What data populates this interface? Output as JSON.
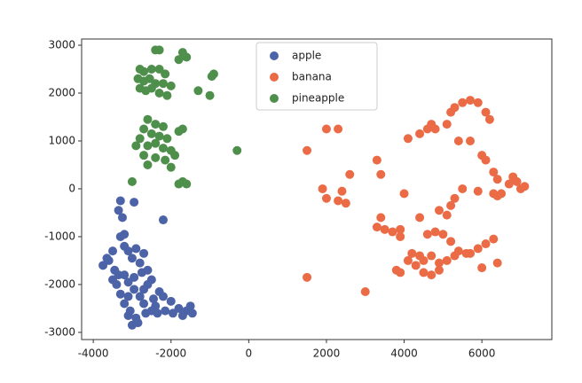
{
  "chart_data": {
    "type": "scatter",
    "xlim": [
      -4300,
      7800
    ],
    "ylim": [
      -3150,
      3130
    ],
    "xticks": [
      -4000,
      -2000,
      0,
      2000,
      4000,
      6000
    ],
    "yticks": [
      -3000,
      -2000,
      -1000,
      0,
      1000,
      2000,
      3000
    ],
    "grid": false,
    "legend": "top-center",
    "series": [
      {
        "name": "apple",
        "color": "#4c63a8",
        "x": [
          -3300,
          -3350,
          -3250,
          -2950,
          -2200,
          -3300,
          -3200,
          -3500,
          -3650,
          -3750,
          -3600,
          -3200,
          -3100,
          -2900,
          -3000,
          -2700,
          -2800,
          -3450,
          -3350,
          -3500,
          -3400,
          -3200,
          -3100,
          -2950,
          -2750,
          -2600,
          -2500,
          -2600,
          -2300,
          -3300,
          -3200,
          -3100,
          -2950,
          -2800,
          -2700,
          -2450,
          -2200,
          -2000,
          -1800,
          -1600,
          -1500,
          -1450,
          -3050,
          -2900,
          -3000,
          -2850,
          -2650,
          -2500,
          -2350,
          -2150,
          -1950,
          -1700,
          -3100,
          -2700,
          -2400
        ],
        "values": [
          -250,
          -450,
          -600,
          -280,
          -650,
          -1000,
          -950,
          -1300,
          -1450,
          -1600,
          -1500,
          -1200,
          -1300,
          -1250,
          -1450,
          -1350,
          -1550,
          -1700,
          -1800,
          -1900,
          -2000,
          -1800,
          -1950,
          -1850,
          -1750,
          -1700,
          -1900,
          -2000,
          -2150,
          -2200,
          -2400,
          -2250,
          -2100,
          -2250,
          -2100,
          -2300,
          -2250,
          -2350,
          -2500,
          -2550,
          -2450,
          -2600,
          -2550,
          -2700,
          -2850,
          -2800,
          -2600,
          -2550,
          -2600,
          -2550,
          -2600,
          -2650,
          -2650,
          -2400,
          -2450
        ]
      },
      {
        "name": "banana",
        "color": "#ea6b45",
        "x": [
          1500,
          2000,
          2300,
          1500,
          1900,
          2000,
          2300,
          2400,
          2600,
          2500,
          3300,
          3400,
          3400,
          3300,
          3500,
          3700,
          3900,
          3900,
          4000,
          4100,
          3000,
          3800,
          3900,
          4100,
          4400,
          4600,
          4700,
          4800,
          5100,
          5200,
          5300,
          5500,
          5700,
          5900,
          6100,
          6200,
          5400,
          5700,
          6000,
          6100,
          6300,
          6400,
          6500,
          6700,
          6800,
          6900,
          7000,
          7100,
          6300,
          6400,
          5900,
          5500,
          5300,
          5200,
          5100,
          4900,
          4400,
          4600,
          4800,
          5000,
          5200,
          5400,
          5700,
          5900,
          6100,
          6300,
          6400,
          6000,
          5600,
          5300,
          5100,
          4900,
          4700,
          4500,
          4300,
          4200,
          4500,
          4700,
          4900,
          4400
        ],
        "values": [
          800,
          1250,
          1250,
          -1850,
          0,
          -200,
          -250,
          -50,
          300,
          -300,
          600,
          300,
          -600,
          -800,
          -850,
          -900,
          -850,
          -1000,
          -100,
          1050,
          -2150,
          -1700,
          -1750,
          -1500,
          1150,
          1250,
          1350,
          1250,
          1350,
          1600,
          1700,
          1800,
          1850,
          1800,
          1600,
          1450,
          1000,
          1000,
          700,
          600,
          350,
          200,
          -100,
          100,
          250,
          150,
          0,
          50,
          -100,
          -150,
          -50,
          0,
          -200,
          -350,
          -550,
          -450,
          -600,
          -950,
          -900,
          -950,
          -1100,
          -1300,
          -1350,
          -1250,
          -1150,
          -1050,
          -1550,
          -1650,
          -1350,
          -1400,
          -1500,
          -1550,
          -1400,
          -1500,
          -1600,
          -1350,
          -1750,
          -1800,
          -1700,
          -1400
        ]
      },
      {
        "name": "pineapple",
        "color": "#4f8f4c",
        "x": [
          -2400,
          -2300,
          -1700,
          -1800,
          -1600,
          -2800,
          -2700,
          -2500,
          -2300,
          -2150,
          -2850,
          -2700,
          -2550,
          -2400,
          -2200,
          -2000,
          -2800,
          -2650,
          -2500,
          -2300,
          -2100,
          -1300,
          -1000,
          -900,
          -950,
          -2600,
          -2400,
          -2200,
          -2700,
          -2500,
          -2300,
          -2100,
          -1800,
          -1700,
          -2800,
          -2900,
          -2600,
          -2400,
          -2200,
          -2000,
          -2700,
          -2400,
          -2150,
          -1900,
          -2600,
          -2000,
          -3000,
          -1700,
          -1600,
          -1800,
          -300
        ],
        "values": [
          2900,
          2900,
          2850,
          2700,
          2750,
          2500,
          2450,
          2500,
          2500,
          2400,
          2300,
          2250,
          2300,
          2200,
          2200,
          2150,
          2100,
          2050,
          2100,
          2000,
          1950,
          2050,
          1950,
          2400,
          2350,
          1450,
          1350,
          1300,
          1250,
          1150,
          1100,
          1050,
          1200,
          1250,
          1050,
          900,
          900,
          950,
          850,
          800,
          700,
          650,
          600,
          700,
          500,
          450,
          150,
          150,
          100,
          100,
          800
        ]
      }
    ]
  }
}
